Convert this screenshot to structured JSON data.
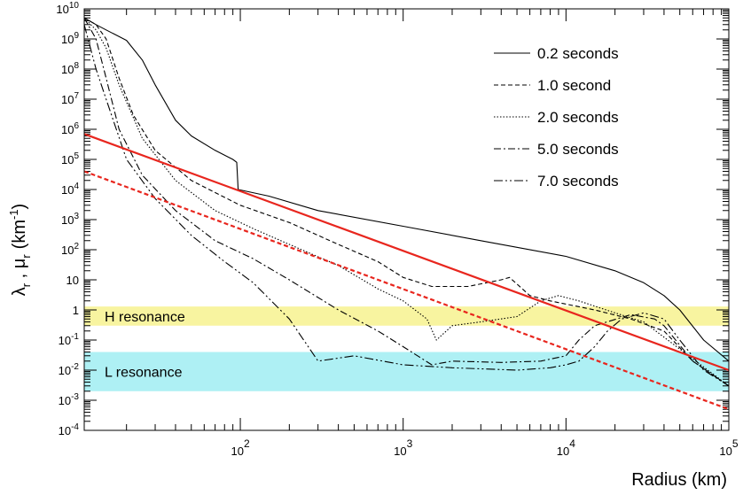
{
  "chart_data": {
    "type": "line",
    "xlabel": "Radius (km)",
    "ylabel_main": "λ",
    "ylabel_sub_1": "r",
    "ylabel_sep": " , ",
    "ylabel_mu": "μ",
    "ylabel_sub_2": "r",
    "ylabel_unit": "(km",
    "ylabel_unit_exp": "-1",
    "ylabel_unit_close": ")",
    "xscale": "log",
    "yscale": "log",
    "xlim": [
      11,
      100000
    ],
    "ylim": [
      0.0001,
      10000000000
    ],
    "x_ticks": [
      {
        "value": 100,
        "base": "10",
        "exp": "2"
      },
      {
        "value": 1000,
        "base": "10",
        "exp": "3"
      },
      {
        "value": 10000,
        "base": "10",
        "exp": "4"
      },
      {
        "value": 100000,
        "base": "10",
        "exp": "5"
      }
    ],
    "y_ticks": [
      {
        "value": 0.0001,
        "base": "10",
        "exp": "-4"
      },
      {
        "value": 0.001,
        "base": "10",
        "exp": "-3"
      },
      {
        "value": 0.01,
        "base": "10",
        "exp": "-2"
      },
      {
        "value": 0.1,
        "base": "10",
        "exp": "-1"
      },
      {
        "value": 1,
        "base": "1",
        "exp": ""
      },
      {
        "value": 10,
        "base": "10",
        "exp": ""
      },
      {
        "value": 100,
        "base": "10",
        "exp": "2"
      },
      {
        "value": 1000,
        "base": "10",
        "exp": "3"
      },
      {
        "value": 10000,
        "base": "10",
        "exp": "4"
      },
      {
        "value": 100000,
        "base": "10",
        "exp": "5"
      },
      {
        "value": 1000000,
        "base": "10",
        "exp": "6"
      },
      {
        "value": 10000000,
        "base": "10",
        "exp": "7"
      },
      {
        "value": 100000000,
        "base": "10",
        "exp": "8"
      },
      {
        "value": 1000000000,
        "base": "10",
        "exp": "9"
      },
      {
        "value": 10000000000,
        "base": "10",
        "exp": "10"
      }
    ],
    "bands": [
      {
        "label": "H resonance",
        "y_range": [
          0.3,
          1.3
        ],
        "color": "#f8f4a0"
      },
      {
        "label": "L resonance",
        "y_range": [
          0.002,
          0.04
        ],
        "color": "#aef0f4"
      }
    ],
    "legend_position": "top-right",
    "series": [
      {
        "name": "0.2 seconds",
        "color": "#000000",
        "dash": "solid",
        "points": [
          [
            11,
            5000000000
          ],
          [
            13,
            3000000000
          ],
          [
            15,
            2000000000
          ],
          [
            20,
            900000000
          ],
          [
            25,
            200000000
          ],
          [
            30,
            30000000
          ],
          [
            40,
            2000000
          ],
          [
            50,
            600000
          ],
          [
            70,
            200000
          ],
          [
            90,
            100000
          ],
          [
            95,
            80000
          ],
          [
            97,
            10000
          ],
          [
            150,
            6000
          ],
          [
            300,
            2000
          ],
          [
            1000,
            600
          ],
          [
            3000,
            200
          ],
          [
            10000,
            60
          ],
          [
            20000,
            20
          ],
          [
            30000,
            8
          ],
          [
            40000,
            3
          ],
          [
            50000,
            1
          ],
          [
            70000,
            0.1
          ],
          [
            100000,
            0.02
          ]
        ]
      },
      {
        "name": "1.0 second",
        "color": "#000000",
        "dash": "dashed",
        "points": [
          [
            11,
            5000000000
          ],
          [
            13,
            3000000000
          ],
          [
            15,
            1000000000
          ],
          [
            18,
            50000000
          ],
          [
            22,
            3000000
          ],
          [
            30,
            200000
          ],
          [
            50,
            20000
          ],
          [
            100,
            3000
          ],
          [
            200,
            800
          ],
          [
            400,
            150
          ],
          [
            700,
            40
          ],
          [
            1000,
            12
          ],
          [
            1500,
            6
          ],
          [
            2500,
            6
          ],
          [
            4000,
            10
          ],
          [
            4500,
            12
          ],
          [
            6000,
            3
          ],
          [
            8000,
            2
          ],
          [
            15000,
            1
          ],
          [
            25000,
            0.5
          ],
          [
            40000,
            0.2
          ],
          [
            60000,
            0.02
          ],
          [
            100000,
            0.003
          ]
        ]
      },
      {
        "name": "2.0 seconds",
        "color": "#000000",
        "dash": "dotted",
        "points": [
          [
            11,
            5000000000
          ],
          [
            13,
            2000000000
          ],
          [
            15,
            500000000
          ],
          [
            18,
            30000000
          ],
          [
            25,
            500000
          ],
          [
            40,
            20000
          ],
          [
            70,
            2000
          ],
          [
            120,
            500
          ],
          [
            200,
            150
          ],
          [
            400,
            30
          ],
          [
            700,
            5
          ],
          [
            1000,
            2
          ],
          [
            1400,
            0.5
          ],
          [
            1600,
            0.1
          ],
          [
            2000,
            0.3
          ],
          [
            3000,
            0.4
          ],
          [
            5000,
            0.6
          ],
          [
            7000,
            2
          ],
          [
            9000,
            3
          ],
          [
            12000,
            2
          ],
          [
            20000,
            0.8
          ],
          [
            30000,
            0.4
          ],
          [
            50000,
            0.05
          ],
          [
            100000,
            0.003
          ]
        ]
      },
      {
        "name": "5.0 seconds",
        "color": "#000000",
        "dash": "dashdot",
        "points": [
          [
            11,
            5000000000
          ],
          [
            13,
            1000000000
          ],
          [
            15,
            50000000
          ],
          [
            18,
            1000000
          ],
          [
            25,
            30000
          ],
          [
            40,
            2000
          ],
          [
            70,
            200
          ],
          [
            120,
            50
          ],
          [
            200,
            10
          ],
          [
            400,
            1
          ],
          [
            700,
            0.2
          ],
          [
            1000,
            0.06
          ],
          [
            1500,
            0.015
          ],
          [
            2000,
            0.02
          ],
          [
            4000,
            0.018
          ],
          [
            7000,
            0.02
          ],
          [
            10000,
            0.03
          ],
          [
            12000,
            0.1
          ],
          [
            15000,
            0.3
          ],
          [
            25000,
            0.7
          ],
          [
            35000,
            0.5
          ],
          [
            40000,
            0.3
          ],
          [
            60000,
            0.02
          ],
          [
            100000,
            0.003
          ]
        ]
      },
      {
        "name": "7.0 seconds",
        "color": "#000000",
        "dash": "dashdotdot",
        "points": [
          [
            11,
            3000000000
          ],
          [
            13,
            100000000
          ],
          [
            15,
            10000000
          ],
          [
            20,
            100000
          ],
          [
            30,
            5000
          ],
          [
            50,
            300
          ],
          [
            80,
            40
          ],
          [
            120,
            8
          ],
          [
            200,
            0.5
          ],
          [
            300,
            0.02
          ],
          [
            500,
            0.03
          ],
          [
            1000,
            0.015
          ],
          [
            2000,
            0.012
          ],
          [
            5000,
            0.01
          ],
          [
            8000,
            0.012
          ],
          [
            10000,
            0.015
          ],
          [
            12000,
            0.02
          ],
          [
            15000,
            0.06
          ],
          [
            18000,
            0.2
          ],
          [
            22000,
            0.5
          ],
          [
            30000,
            0.8
          ],
          [
            40000,
            0.5
          ],
          [
            50000,
            0.1
          ],
          [
            70000,
            0.01
          ],
          [
            100000,
            0.003
          ]
        ]
      },
      {
        "name": "",
        "color": "#e8261e",
        "dash": "solid",
        "width": 2.2,
        "points": [
          [
            11,
            700000
          ],
          [
            100000,
            0.01
          ]
        ]
      },
      {
        "name": "",
        "color": "#e8261e",
        "dash": "dashed",
        "width": 2.2,
        "points": [
          [
            11,
            40000
          ],
          [
            100000,
            0.0005
          ]
        ]
      }
    ]
  }
}
